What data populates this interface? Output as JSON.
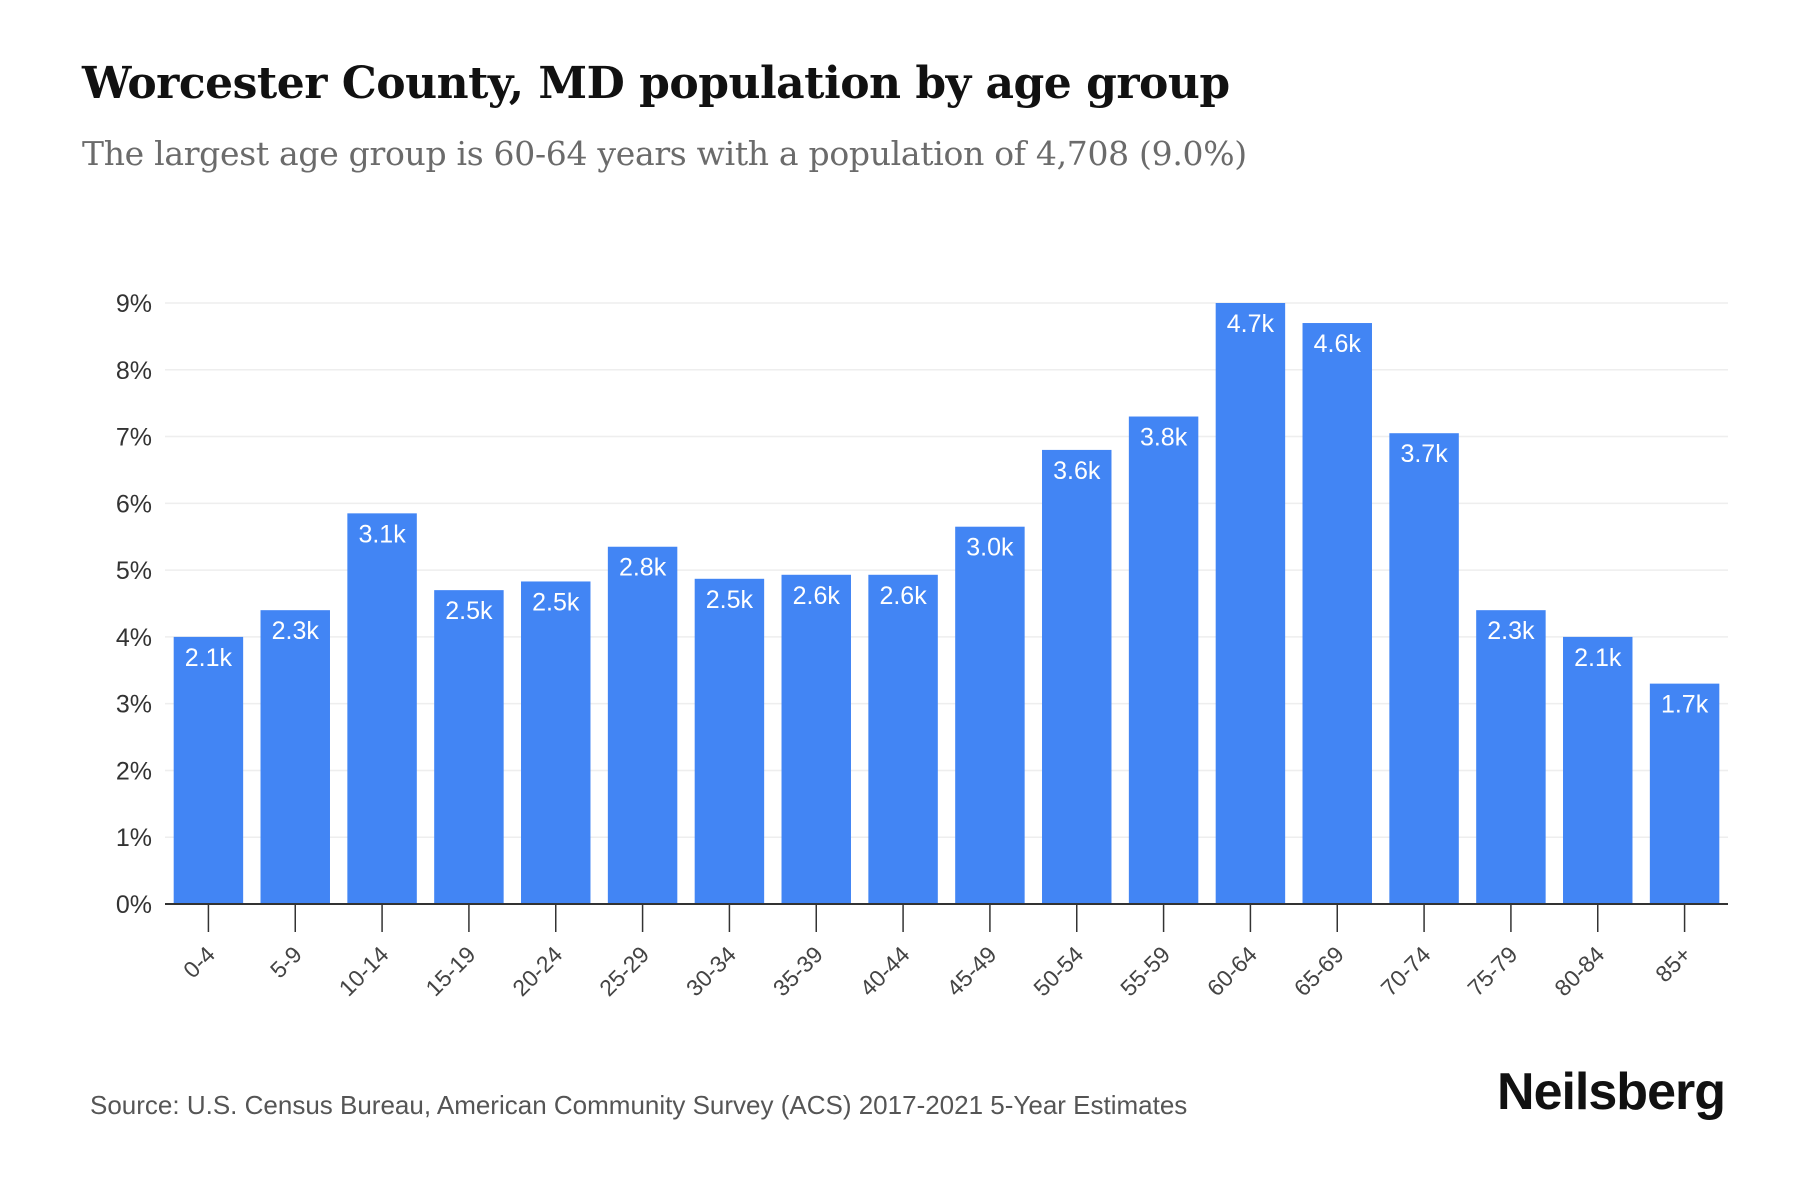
{
  "header": {
    "title": "Worcester County, MD population by age group",
    "subtitle": "The largest age group is 60-64 years with a population of 4,708 (9.0%)"
  },
  "footer": {
    "source": "Source: U.S. Census Bureau, American Community Survey (ACS) 2017-2021 5-Year Estimates",
    "brand": "Neilsberg"
  },
  "colors": {
    "bar": "#4285f4",
    "grid": "#eeeeee",
    "axis": "#333333"
  },
  "chart_data": {
    "type": "bar",
    "title": "Worcester County, MD population by age group",
    "xlabel": "",
    "ylabel": "",
    "ylim": [
      0,
      9
    ],
    "y_ticks": [
      0,
      1,
      2,
      3,
      4,
      5,
      6,
      7,
      8,
      9
    ],
    "y_tick_labels": [
      "0%",
      "1%",
      "2%",
      "3%",
      "4%",
      "5%",
      "6%",
      "7%",
      "8%",
      "9%"
    ],
    "grid": true,
    "categories": [
      "0-4",
      "5-9",
      "10-14",
      "15-19",
      "20-24",
      "25-29",
      "30-34",
      "35-39",
      "40-44",
      "45-49",
      "50-54",
      "55-59",
      "60-64",
      "65-69",
      "70-74",
      "75-79",
      "80-84",
      "85+"
    ],
    "values": [
      4.0,
      4.4,
      5.85,
      4.7,
      4.83,
      5.35,
      4.87,
      4.93,
      4.93,
      5.65,
      6.8,
      7.3,
      9.0,
      8.7,
      7.05,
      4.4,
      4.0,
      3.3
    ],
    "data_labels": [
      "2.1k",
      "2.3k",
      "3.1k",
      "2.5k",
      "2.5k",
      "2.8k",
      "2.5k",
      "2.6k",
      "2.6k",
      "3.0k",
      "3.6k",
      "3.8k",
      "4.7k",
      "4.6k",
      "3.7k",
      "2.3k",
      "2.1k",
      "1.7k"
    ]
  }
}
